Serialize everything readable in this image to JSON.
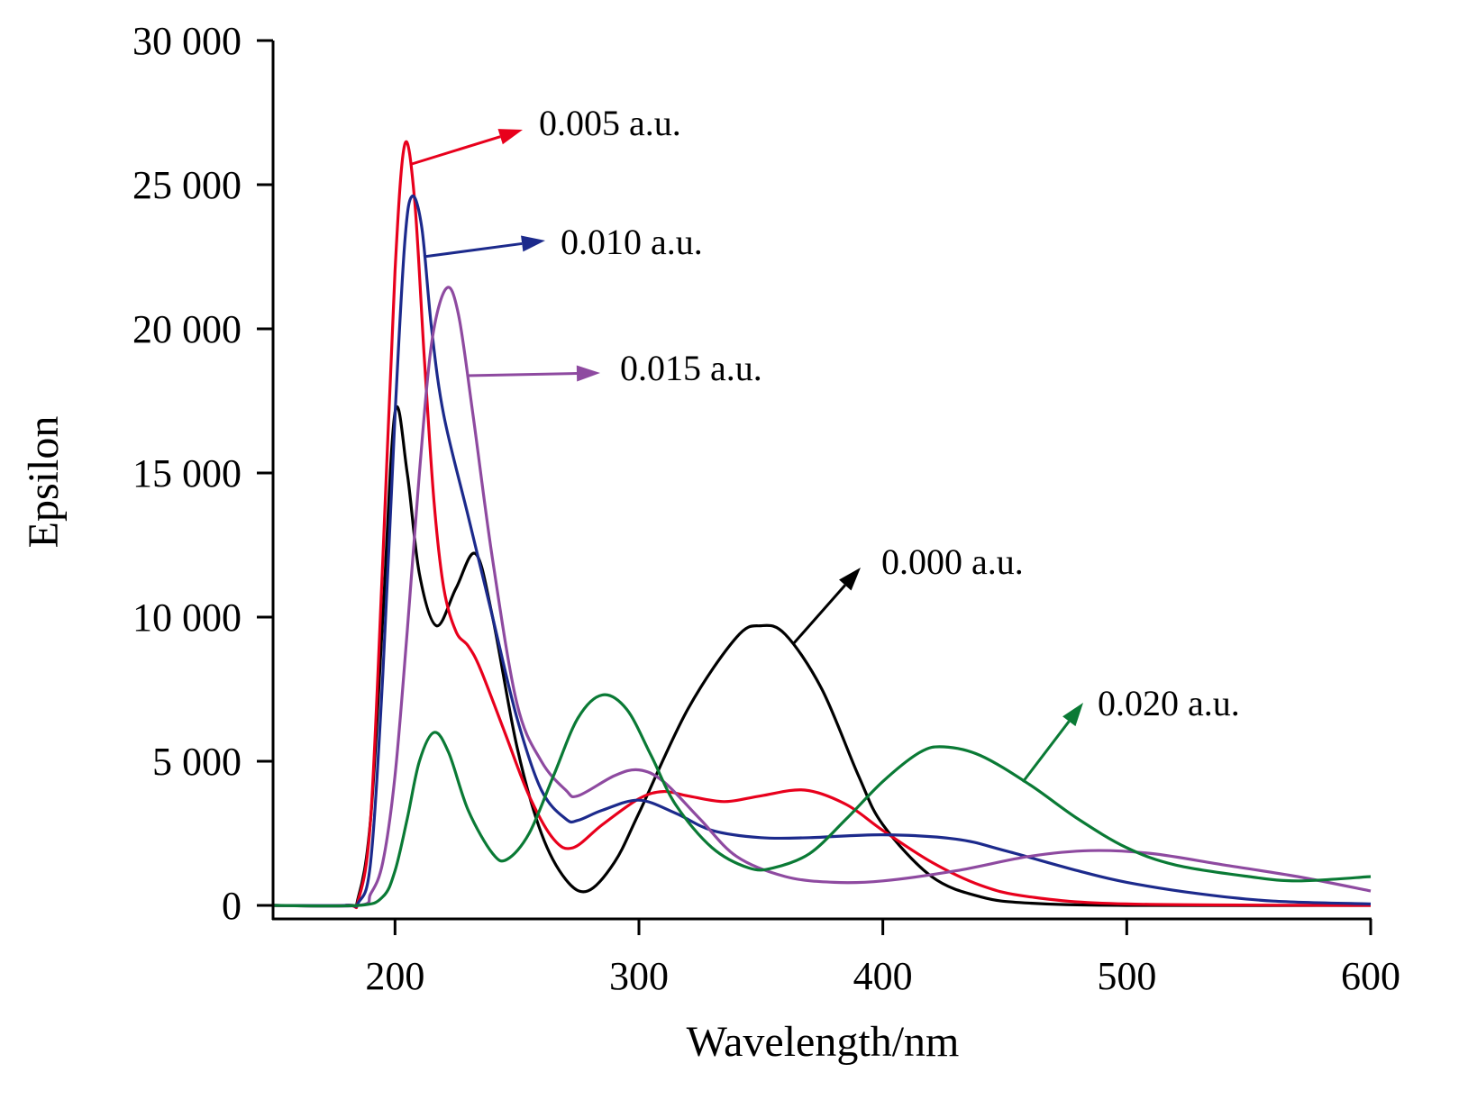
{
  "chart_data": {
    "type": "line",
    "title": "",
    "xlabel": "Wavelength/nm",
    "ylabel": "Epsilon",
    "xlim": [
      150,
      600
    ],
    "ylim": [
      0,
      30000
    ],
    "grid": false,
    "legend": "annotations with arrows next to each curve",
    "x_ticks": [
      200,
      300,
      400,
      500,
      600
    ],
    "x_tick_labels": [
      "200",
      "300",
      "400",
      "500",
      "600"
    ],
    "y_ticks": [
      0,
      5000,
      10000,
      15000,
      20000,
      25000,
      30000
    ],
    "y_tick_labels": [
      "0",
      "5 000",
      "10 000",
      "15 000",
      "20 000",
      "25 000",
      "30 000"
    ],
    "series": [
      {
        "name": "0.000 a.u.",
        "color": "#000000",
        "x": [
          150,
          180,
          185,
          190,
          195,
          200,
          205,
          210,
          217,
          225,
          233,
          240,
          250,
          260,
          270,
          279,
          290,
          300,
          320,
          340,
          350,
          360,
          375,
          390,
          400,
          420,
          440,
          460,
          500,
          600
        ],
        "y": [
          0,
          0,
          300,
          3000,
          10000,
          17100,
          15000,
          11500,
          9700,
          11000,
          12200,
          10000,
          5500,
          2500,
          900,
          500,
          1500,
          3200,
          6800,
          9300,
          9700,
          9400,
          7500,
          4500,
          2800,
          1000,
          300,
          80,
          0,
          0
        ]
      },
      {
        "name": "0.005 a.u.",
        "color": "#e8001c",
        "x": [
          150,
          180,
          185,
          190,
          195,
          200,
          204,
          208,
          212,
          216,
          220,
          225,
          230,
          235,
          245,
          255,
          265,
          273,
          285,
          300,
          310,
          320,
          335,
          350,
          368,
          385,
          400,
          420,
          440,
          460,
          500,
          600
        ],
        "y": [
          0,
          0,
          200,
          3000,
          12000,
          22000,
          26400,
          24500,
          19000,
          14000,
          11000,
          9500,
          9000,
          8200,
          6000,
          3800,
          2300,
          2000,
          2800,
          3700,
          3950,
          3800,
          3600,
          3800,
          4000,
          3500,
          2600,
          1500,
          700,
          300,
          50,
          0
        ]
      },
      {
        "name": "0.010 a.u.",
        "color": "#1c2a8c",
        "x": [
          150,
          180,
          185,
          190,
          195,
          200,
          204,
          207,
          211,
          215,
          220,
          230,
          240,
          250,
          260,
          270,
          275,
          285,
          300,
          315,
          330,
          350,
          370,
          400,
          430,
          450,
          480,
          500,
          530,
          560,
          600
        ],
        "y": [
          0,
          0,
          100,
          1500,
          8000,
          17000,
          23000,
          24600,
          23500,
          20000,
          17000,
          13500,
          10000,
          6500,
          4000,
          3000,
          2950,
          3300,
          3650,
          3200,
          2600,
          2350,
          2350,
          2450,
          2300,
          1900,
          1200,
          800,
          400,
          150,
          50
        ]
      },
      {
        "name": "0.015 a.u.",
        "color": "#8e4aa0",
        "x": [
          150,
          185,
          190,
          195,
          200,
          205,
          210,
          215,
          221,
          226,
          232,
          240,
          250,
          260,
          270,
          275,
          290,
          300,
          310,
          325,
          340,
          360,
          380,
          400,
          430,
          460,
          485,
          510,
          540,
          570,
          600
        ],
        "y": [
          0,
          0,
          400,
          1500,
          4500,
          9500,
          15000,
          19500,
          21400,
          20500,
          17000,
          12000,
          7000,
          5000,
          4000,
          3800,
          4500,
          4700,
          4300,
          3000,
          1700,
          1000,
          800,
          850,
          1200,
          1700,
          1900,
          1800,
          1400,
          1000,
          500
        ]
      },
      {
        "name": "0.020 a.u.",
        "color": "#0a7a35",
        "x": [
          150,
          185,
          195,
          200,
          205,
          210,
          216,
          222,
          230,
          240,
          246,
          255,
          265,
          275,
          285,
          295,
          305,
          315,
          330,
          345,
          355,
          370,
          385,
          400,
          415,
          425,
          440,
          460,
          480,
          500,
          520,
          550,
          570,
          600
        ],
        "y": [
          0,
          0,
          300,
          1200,
          3000,
          5000,
          6000,
          5300,
          3300,
          1800,
          1600,
          2500,
          4500,
          6500,
          7300,
          6800,
          5200,
          3500,
          2000,
          1300,
          1300,
          1800,
          3000,
          4300,
          5300,
          5500,
          5200,
          4200,
          3000,
          2000,
          1400,
          1000,
          850,
          1000
        ]
      }
    ]
  }
}
